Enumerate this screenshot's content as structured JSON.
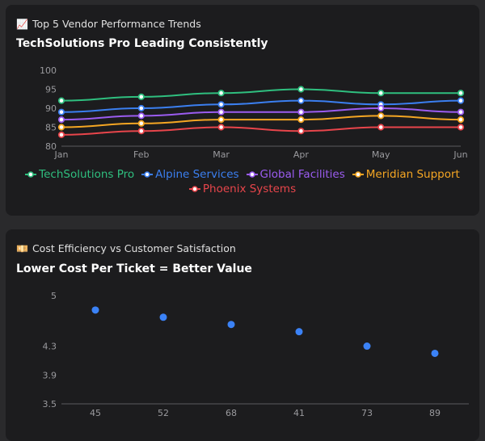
{
  "panels": [
    {
      "label_icon": "📈",
      "label": "Top 5 Vendor Performance Trends",
      "headline": "TechSolutions Pro Leading Consistently"
    },
    {
      "label_icon": "💴",
      "label": "Cost Efficiency vs Customer Satisfaction",
      "headline": "Lower Cost Per Ticket = Better Value"
    }
  ],
  "chart_data": [
    {
      "type": "line",
      "x": [
        "Jan",
        "Feb",
        "Mar",
        "Apr",
        "May",
        "Jun"
      ],
      "ylim": [
        80,
        100
      ],
      "yticks": [
        80,
        85,
        90,
        95,
        100
      ],
      "grid": false,
      "legend": "bottom",
      "series": [
        {
          "name": "TechSolutions Pro",
          "color": "#2fbf7f",
          "values": [
            92,
            93,
            94,
            95,
            94,
            94
          ]
        },
        {
          "name": "Alpine Services",
          "color": "#3b7ff0",
          "values": [
            89,
            90,
            91,
            92,
            91,
            92
          ]
        },
        {
          "name": "Global Facilities",
          "color": "#9b5cf0",
          "values": [
            87,
            88,
            89,
            89,
            90,
            89
          ]
        },
        {
          "name": "Meridian Support",
          "color": "#f5a623",
          "values": [
            85,
            86,
            87,
            87,
            88,
            87
          ]
        },
        {
          "name": "Phoenix Systems",
          "color": "#e8454b",
          "values": [
            83,
            84,
            85,
            84,
            85,
            85
          ]
        }
      ]
    },
    {
      "type": "scatter",
      "categories": [
        "45",
        "52",
        "68",
        "41",
        "73",
        "89"
      ],
      "values": [
        4.8,
        4.7,
        4.6,
        4.5,
        4.3,
        4.2
      ],
      "yticks": [
        3.5,
        3.9,
        4.3,
        5
      ],
      "ylim": [
        3.5,
        5
      ],
      "grid": false,
      "color": "#3b82f6"
    }
  ]
}
